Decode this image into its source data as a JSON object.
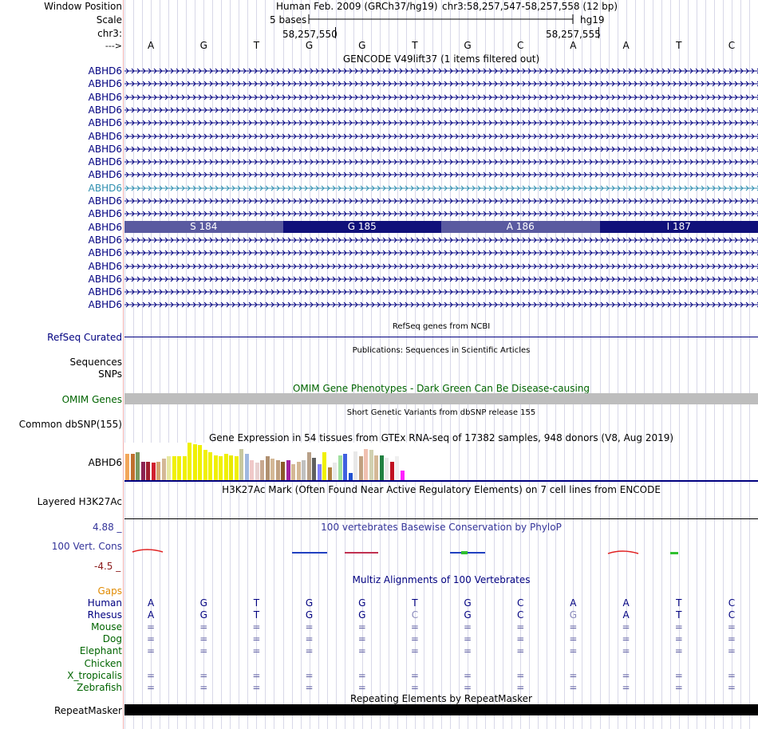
{
  "colors": {
    "navy": "#000080",
    "cyan_gene": "#2f8fb0",
    "green": "#006400",
    "gaps": "#e08a00",
    "phylo_title": "#333399",
    "grid": "#d8d8e8"
  },
  "header": {
    "window_position_label": "Window Position",
    "scale_label": "Scale",
    "chrom_label": "chr3:",
    "strand_label": "--->",
    "assembly": "Human Feb. 2009 (GRCh37/hg19)",
    "position": "chr3:58,257,547-58,257,558 (12 bp)",
    "scale_bar_text": "5 bases",
    "scale_db": "hg19",
    "pos_tick_1": "58,257,550",
    "pos_tick_2": "58,257,555"
  },
  "bases": [
    "A",
    "G",
    "T",
    "G",
    "G",
    "T",
    "G",
    "C",
    "A",
    "A",
    "T",
    "C"
  ],
  "gencode": {
    "title": "GENCODE V49lift37 (1 items filtered out)",
    "genes": [
      "ABHD6",
      "ABHD6",
      "ABHD6",
      "ABHD6",
      "ABHD6",
      "ABHD6",
      "ABHD6",
      "ABHD6",
      "ABHD6",
      "ABHD6",
      "ABHD6",
      "ABHD6",
      "ABHD6",
      "ABHD6",
      "ABHD6",
      "ABHD6",
      "ABHD6",
      "ABHD6",
      "ABHD6"
    ],
    "highlight_index": 9,
    "coding_index": 12,
    "codons": [
      "S 184",
      "G 185",
      "A 186",
      "I 187"
    ]
  },
  "refseq": {
    "title": "RefSeq genes from NCBI",
    "label": "RefSeq Curated"
  },
  "publications": {
    "title": "Publications: Sequences in Scientific Articles",
    "label1": "Sequences",
    "label2": "SNPs"
  },
  "omim": {
    "title": "OMIM Gene Phenotypes - Dark Green Can Be Disease-causing",
    "label": "OMIM Genes"
  },
  "dbsnp": {
    "title": "Short Genetic Variants from dbSNP release 155",
    "label": "Common dbSNP(155)"
  },
  "gtex": {
    "title": "Gene Expression in 54 tissues from GTEx RNA-seq of 17382 samples, 948 donors (V8, Aug 2019)",
    "label": "ABHD6"
  },
  "chart_data": {
    "type": "bar",
    "title": "Gene Expression in 54 tissues from GTEx RNA-seq of 17382 samples, 948 donors (V8, Aug 2019)",
    "values": [
      0.42,
      0.42,
      0.45,
      0.3,
      0.3,
      0.28,
      0.3,
      0.34,
      0.38,
      0.38,
      0.38,
      0.38,
      0.6,
      0.58,
      0.56,
      0.48,
      0.45,
      0.4,
      0.38,
      0.42,
      0.4,
      0.38,
      0.5,
      0.42,
      0.32,
      0.28,
      0.32,
      0.38,
      0.35,
      0.32,
      0.3,
      0.32,
      0.25,
      0.3,
      0.32,
      0.45,
      0.36,
      0.25,
      0.45,
      0.2,
      0.28,
      0.4,
      0.42,
      0.12,
      0.46,
      0.38,
      0.5,
      0.48,
      0.4,
      0.4,
      0.36,
      0.3,
      0.38,
      0.15
    ],
    "colors": [
      "#f2a65a",
      "#c07030",
      "#7a9a60",
      "#8b2252",
      "#a02030",
      "#d02030",
      "#d4a370",
      "#d4b896",
      "#e8e8a0",
      "#f0f000",
      "#f0f000",
      "#f0f000",
      "#f0f000",
      "#f0f000",
      "#f0f000",
      "#f0f000",
      "#f0f000",
      "#f0f000",
      "#f0f000",
      "#f0f000",
      "#e8e800",
      "#f0f000",
      "#c8c8a0",
      "#a0b8e0",
      "#f0c8c8",
      "#e8d0d0",
      "#c8a890",
      "#b09070",
      "#d4b896",
      "#c0a080",
      "#8b5a2b",
      "#a020a0",
      "#d4b896",
      "#d4b896",
      "#c0c0c0",
      "#b8a088",
      "#606060",
      "#8080ff",
      "#f0f000",
      "#b08040",
      "#e8e8e8",
      "#a0e0a0",
      "#4060e0",
      "#2050d0",
      "#e8e8e8",
      "#c0a080",
      "#f0c0b0",
      "#d0d0b0",
      "#d4b896",
      "#208040",
      "#e8e8e8",
      "#c01020",
      "#f0f0f0",
      "#ff20ff"
    ]
  },
  "h3k27ac": {
    "title": "H3K27Ac Mark (Often Found Near Active Regulatory Elements) on 7 cell lines from ENCODE",
    "label": "Layered H3K27Ac"
  },
  "phylop": {
    "title": "100 vertebrates Basewise Conservation by PhyloP",
    "label": "100 Vert. Cons",
    "max": "4.88 _",
    "min": "-4.5 _"
  },
  "multiz": {
    "title": "Multiz Alignments of 100 Vertebrates",
    "gaps_label": "Gaps",
    "rows": [
      {
        "name": "Human",
        "seq": [
          "A",
          "G",
          "T",
          "G",
          "G",
          "T",
          "G",
          "C",
          "A",
          "A",
          "T",
          "C"
        ]
      },
      {
        "name": "Rhesus",
        "seq": [
          "A",
          "G",
          "T",
          "G",
          "G",
          "C",
          "G",
          "C",
          "G",
          "A",
          "T",
          "C"
        ]
      },
      {
        "name": "Mouse",
        "seq": [
          "=",
          "=",
          "=",
          "=",
          "=",
          "=",
          "=",
          "=",
          "=",
          "=",
          "=",
          "="
        ]
      },
      {
        "name": "Dog",
        "seq": [
          "=",
          "=",
          "=",
          "=",
          "=",
          "=",
          "=",
          "=",
          "=",
          "=",
          "=",
          "="
        ]
      },
      {
        "name": "Elephant",
        "seq": [
          "=",
          "=",
          "=",
          "=",
          "=",
          "=",
          "=",
          "=",
          "=",
          "=",
          "=",
          "="
        ]
      },
      {
        "name": "Chicken",
        "seq": [
          "",
          "",
          "",
          "",
          "",
          "",
          "",
          "",
          "",
          "",
          "",
          ""
        ]
      },
      {
        "name": "X_tropicalis",
        "seq": [
          "=",
          "=",
          "=",
          "=",
          "=",
          "=",
          "=",
          "=",
          "=",
          "=",
          "=",
          "="
        ]
      },
      {
        "name": "Zebrafish",
        "seq": [
          "=",
          "=",
          "=",
          "=",
          "=",
          "=",
          "=",
          "=",
          "=",
          "=",
          "=",
          "="
        ]
      }
    ]
  },
  "repeatmasker": {
    "title": "Repeating Elements by RepeatMasker",
    "label": "RepeatMasker"
  }
}
